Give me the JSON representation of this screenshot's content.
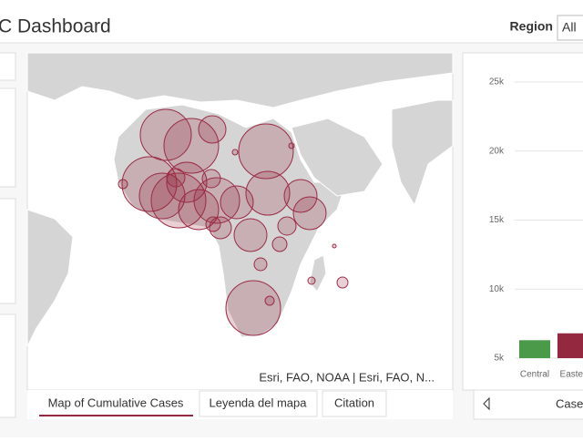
{
  "header": {
    "title": "C Dashboard",
    "filter_label": "Region",
    "filter_value": "All"
  },
  "map": {
    "attribution": "Esri, FAO, NOAA | Esri, FAO, N...",
    "tabs": [
      "Map of Cumulative Cases",
      "Leyenda del mapa",
      "Citation"
    ]
  },
  "chart_panel": {
    "tab": "Cases"
  },
  "chart_data": {
    "type": "bar",
    "categories": [
      "Central",
      "Easter"
    ],
    "values": [
      6300,
      6800
    ],
    "colors": [
      "#4a9a4a",
      "#94283e"
    ],
    "ylim": [
      5000,
      25000
    ],
    "yticks": [
      {
        "value": 5000,
        "label": "5k"
      },
      {
        "value": 10000,
        "label": "10k"
      },
      {
        "value": 15000,
        "label": "15k"
      },
      {
        "value": 20000,
        "label": "20k"
      },
      {
        "value": 25000,
        "label": "25k"
      }
    ],
    "grid": true
  }
}
